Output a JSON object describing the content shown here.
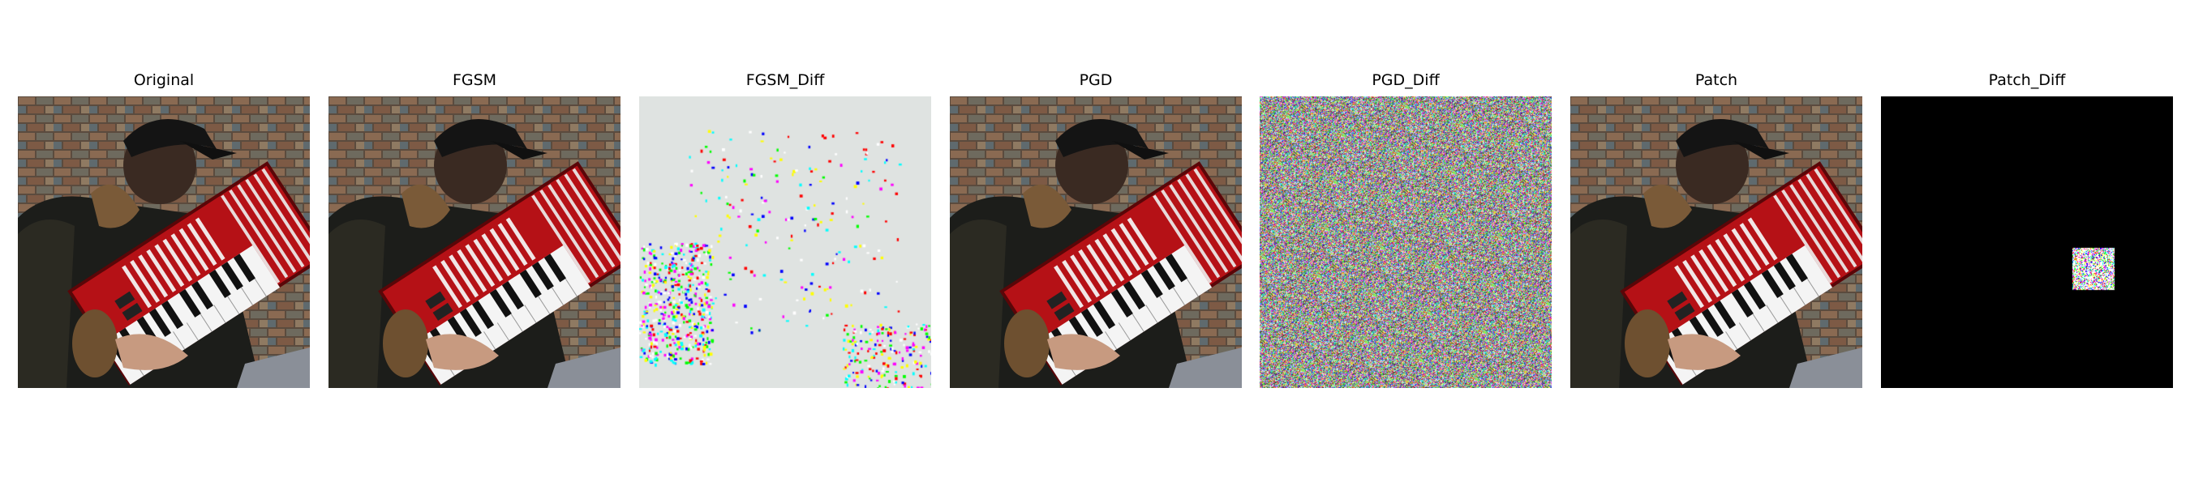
{
  "figure": {
    "panels": [
      {
        "id": "original",
        "title": "Original"
      },
      {
        "id": "fgsm",
        "title": "FGSM"
      },
      {
        "id": "fgsm_diff",
        "title": "FGSM_Diff"
      },
      {
        "id": "pgd",
        "title": "PGD"
      },
      {
        "id": "pgd_diff",
        "title": "PGD_Diff"
      },
      {
        "id": "patch",
        "title": "Patch"
      },
      {
        "id": "patch_diff",
        "title": "Patch_Diff"
      }
    ]
  },
  "colors": {
    "page_background": "#ffffff",
    "diff_background": "#dfe3e1",
    "patch_diff_background": "#000000",
    "accordion_red": "#c01418"
  }
}
